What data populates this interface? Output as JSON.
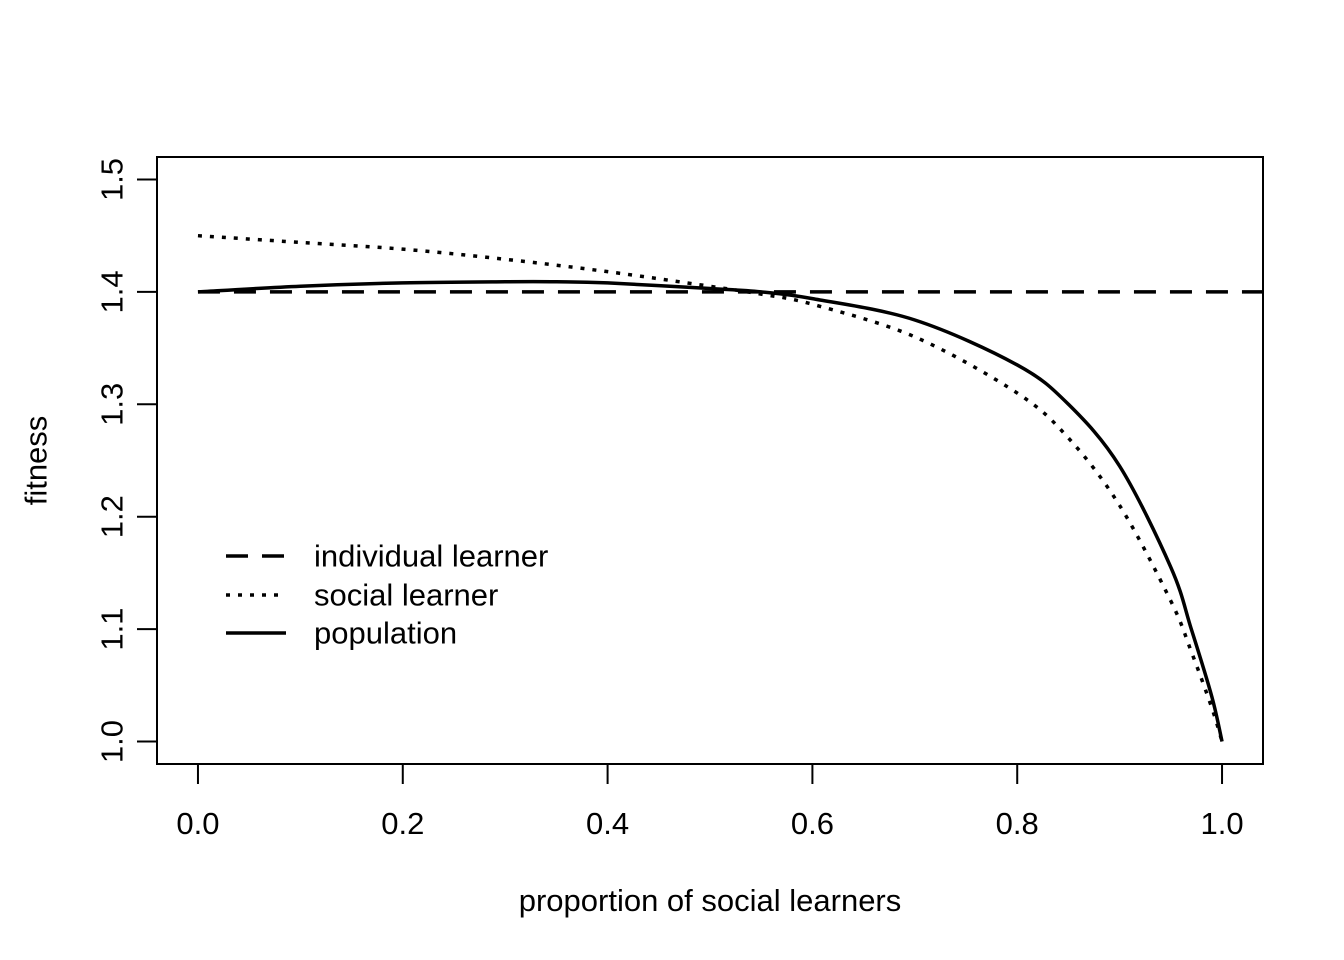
{
  "chart_data": {
    "type": "line",
    "title": "",
    "xlabel": "proportion of social learners",
    "ylabel": "fitness",
    "xlim": [
      -0.04,
      1.04
    ],
    "ylim": [
      0.98,
      1.52
    ],
    "x_ticks": [
      0.0,
      0.2,
      0.4,
      0.6,
      0.8,
      1.0
    ],
    "x_tick_labels": [
      "0.0",
      "0.2",
      "0.4",
      "0.6",
      "0.8",
      "1.0"
    ],
    "y_ticks": [
      1.0,
      1.1,
      1.2,
      1.3,
      1.4,
      1.5
    ],
    "y_tick_labels": [
      "1.0",
      "1.1",
      "1.2",
      "1.3",
      "1.4",
      "1.5"
    ],
    "grid": false,
    "legend_position": "center-left",
    "series": [
      {
        "name": "individual learner",
        "line_style": "dashed",
        "color": "#000000",
        "x": [
          0.0,
          1.04
        ],
        "y": [
          1.4,
          1.4
        ]
      },
      {
        "name": "social learner",
        "line_style": "dotted",
        "color": "#000000",
        "x": [
          0.0,
          0.1,
          0.2,
          0.3,
          0.4,
          0.5,
          0.55,
          0.6,
          0.7,
          0.8,
          0.85,
          0.9,
          0.95,
          0.97,
          0.99,
          1.0
        ],
        "y": [
          1.45,
          1.444,
          1.438,
          1.429,
          1.418,
          1.405,
          1.398,
          1.389,
          1.36,
          1.31,
          1.27,
          1.21,
          1.125,
          1.08,
          1.03,
          1.0
        ]
      },
      {
        "name": "population",
        "line_style": "solid",
        "color": "#000000",
        "x": [
          0.0,
          0.1,
          0.2,
          0.3,
          0.35,
          0.4,
          0.5,
          0.55,
          0.6,
          0.7,
          0.8,
          0.85,
          0.9,
          0.95,
          0.97,
          0.99,
          1.0
        ],
        "y": [
          1.4,
          1.405,
          1.408,
          1.409,
          1.409,
          1.408,
          1.403,
          1.4,
          1.394,
          1.375,
          1.335,
          1.3,
          1.245,
          1.155,
          1.1,
          1.04,
          1.0
        ]
      }
    ]
  }
}
